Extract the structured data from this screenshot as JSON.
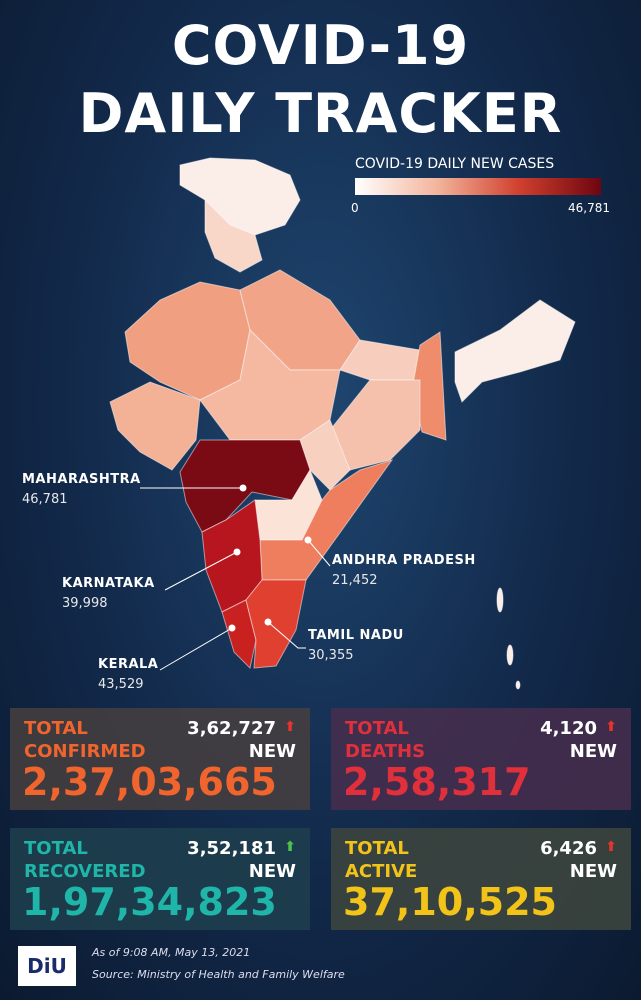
{
  "header": {
    "title_line1": "COVID-19",
    "title_line2": "DAILY TRACKER"
  },
  "legend": {
    "title": "COVID-19 DAILY NEW CASES",
    "min": "0",
    "max": "46,781"
  },
  "states": [
    {
      "name": "MAHARASHTRA",
      "value": "46,781"
    },
    {
      "name": "KARNATAKA",
      "value": "39,998"
    },
    {
      "name": "KERALA",
      "value": "43,529"
    },
    {
      "name": "TAMIL NADU",
      "value": "30,355"
    },
    {
      "name": "ANDHRA PRADESH",
      "value": "21,452"
    }
  ],
  "cards": [
    {
      "label_line1": "TOTAL",
      "label_line2": "CONFIRMED",
      "new_value": "3,62,727",
      "new_label": "NEW",
      "total": "2,37,03,665"
    },
    {
      "label_line1": "TOTAL",
      "label_line2": "DEATHS",
      "new_value": "4,120",
      "new_label": "NEW",
      "total": "2,58,317"
    },
    {
      "label_line1": "TOTAL",
      "label_line2": "RECOVERED",
      "new_value": "3,52,181",
      "new_label": "NEW",
      "total": "1,97,34,823"
    },
    {
      "label_line1": "TOTAL",
      "label_line2": "ACTIVE",
      "new_value": "6,426",
      "new_label": "NEW",
      "total": "37,10,525"
    }
  ],
  "footer": {
    "logo": "DiU",
    "timestamp": "As of 9:08 AM, May 13, 2021",
    "source": "Source: Ministry of Health and Family Welfare"
  }
}
